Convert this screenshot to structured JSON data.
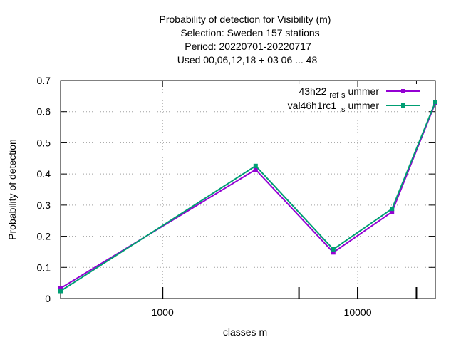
{
  "chart_data": {
    "type": "line",
    "title_lines": [
      "Probability of detection  for Visibility (m)",
      "Selection: Sweden    157 stations",
      "Period: 20220701-20220717",
      "Used  00,06,12,18  + 03 06 ... 48"
    ],
    "xlabel": "classes m",
    "ylabel": "Probability of detection",
    "x_scale": "log",
    "xlim": [
      300,
      25000
    ],
    "ylim": [
      0,
      0.7
    ],
    "x_ticks": [
      {
        "value": 1000,
        "label": "1000"
      },
      {
        "value": 10000,
        "label": "10000"
      }
    ],
    "x_minor_ticks": [
      5000,
      20000
    ],
    "y_ticks": [
      {
        "value": 0,
        "label": "0"
      },
      {
        "value": 0.1,
        "label": "0.1"
      },
      {
        "value": 0.2,
        "label": "0.2"
      },
      {
        "value": 0.3,
        "label": "0.3"
      },
      {
        "value": 0.4,
        "label": "0.4"
      },
      {
        "value": 0.5,
        "label": "0.5"
      },
      {
        "value": 0.6,
        "label": "0.6"
      },
      {
        "value": 0.7,
        "label": "0.7"
      }
    ],
    "grid": true,
    "legend_position": "top-right",
    "series": [
      {
        "name_main": "43h22",
        "name_sub": "ref",
        "name_mid": "s",
        "name_tail": "ummer",
        "color": "#9400d3",
        "x": [
          300,
          3000,
          7500,
          15000,
          25000
        ],
        "y": [
          0.033,
          0.414,
          0.148,
          0.278,
          0.628
        ]
      },
      {
        "name_main": "val46h1rc1",
        "name_sub": "",
        "name_mid": "s",
        "name_tail": "ummer",
        "color": "#009e73",
        "x": [
          300,
          3000,
          7500,
          15000,
          25000
        ],
        "y": [
          0.024,
          0.426,
          0.158,
          0.288,
          0.631
        ]
      }
    ]
  }
}
